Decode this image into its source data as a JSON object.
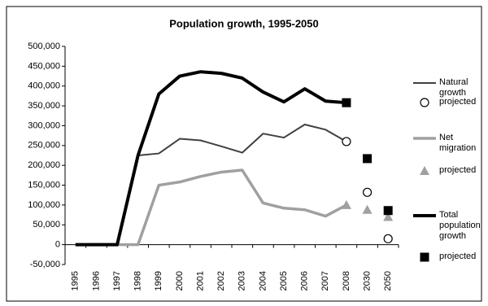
{
  "chart_data": {
    "type": "line",
    "title": "Population growth, 1995-2050",
    "categories": [
      "1995",
      "1996",
      "1997",
      "1998",
      "1999",
      "2000",
      "2001",
      "2002",
      "2003",
      "2004",
      "2005",
      "2006",
      "2007",
      "2008",
      "2030",
      "2050"
    ],
    "series": [
      {
        "name": "Natural growth",
        "color": "#404040",
        "values": [
          0,
          0,
          0,
          225000,
          230000,
          267000,
          263000,
          248000,
          232000,
          280000,
          270000,
          303000,
          290000,
          260000,
          null,
          null
        ]
      },
      {
        "name": "projected",
        "color": "#000000",
        "marker": "circle",
        "values": [
          null,
          null,
          null,
          null,
          null,
          null,
          null,
          null,
          null,
          null,
          null,
          null,
          null,
          260000,
          132000,
          15000
        ]
      },
      {
        "name": "Net migration",
        "color": "#a0a0a0",
        "values": [
          0,
          0,
          0,
          0,
          150000,
          158000,
          172000,
          183000,
          188000,
          105000,
          92000,
          88000,
          72000,
          100000,
          null,
          null
        ]
      },
      {
        "name": "projected",
        "color": "#a0a0a0",
        "marker": "triangle",
        "values": [
          null,
          null,
          null,
          null,
          null,
          null,
          null,
          null,
          null,
          null,
          null,
          null,
          null,
          100000,
          88000,
          70000
        ]
      },
      {
        "name": "Total population growth",
        "color": "#000000",
        "values": [
          0,
          0,
          0,
          225000,
          380000,
          425000,
          436000,
          432000,
          420000,
          385000,
          360000,
          393000,
          362000,
          358000,
          null,
          null
        ]
      },
      {
        "name": "projected",
        "color": "#000000",
        "marker": "square",
        "values": [
          null,
          null,
          null,
          null,
          null,
          null,
          null,
          null,
          null,
          null,
          null,
          null,
          null,
          358000,
          217000,
          86000
        ]
      }
    ],
    "ylim": [
      -50000,
      500000
    ],
    "yticks": [
      {
        "value": -50000,
        "label": "-50,000"
      },
      0,
      {
        "value": 50000,
        "label": "50,000"
      },
      {
        "value": 100000,
        "label": "100,000"
      },
      {
        "value": 150000,
        "label": "150,000"
      },
      {
        "value": 200000,
        "label": "200,000"
      },
      {
        "value": 250000,
        "label": "250,000"
      },
      {
        "value": 300000,
        "label": "300,000"
      },
      {
        "value": 350000,
        "label": "350,000"
      },
      {
        "value": 400000,
        "label": "400,000"
      },
      {
        "value": 450000,
        "label": "450,000"
      },
      {
        "value": 500000,
        "label": "500,000"
      }
    ],
    "grid": false
  }
}
